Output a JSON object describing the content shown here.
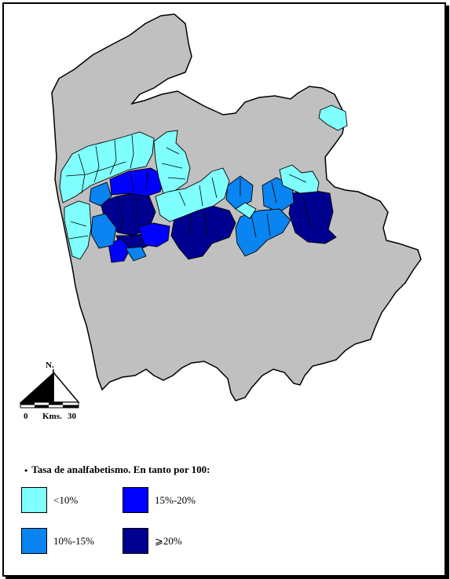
{
  "colors": {
    "land": "#c0c0c0",
    "outline": "#000000",
    "lt10": "#80ffff",
    "b10_15": "#0a84f0",
    "b15_20": "#0000ff",
    "gte20": "#000090"
  },
  "scale": {
    "north_label": "N.",
    "zero_label": "0",
    "unit_label": "Kms.",
    "max_label": "30"
  },
  "legend": {
    "title": "Tasa de analfabetismo. En tanto por 100:",
    "title_marker": "⋆",
    "items": [
      {
        "label": "<10%",
        "color": "#80ffff"
      },
      {
        "label": "15%-20%",
        "color": "#0000ff"
      },
      {
        "label": "10%-15%",
        "color": "#0a84f0"
      },
      {
        "label": "⩾20%",
        "color": "#000090"
      }
    ]
  }
}
